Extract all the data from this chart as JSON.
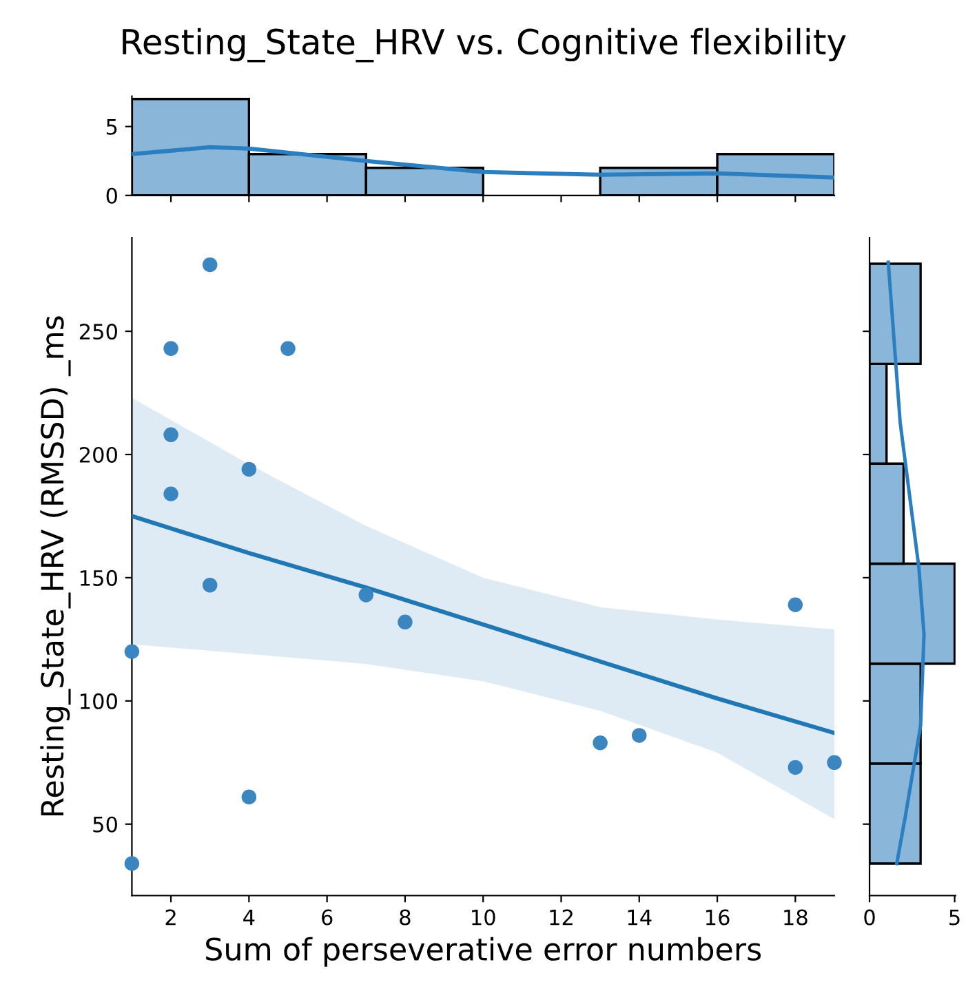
{
  "chart_data": [
    {
      "type": "histogram",
      "title": "Resting_State_HRV vs. Cognitive flexibility",
      "xlim": [
        1,
        19
      ],
      "xticks": [
        {
          "value": 2,
          "label": null
        },
        {
          "value": 4,
          "label": null
        },
        {
          "value": 6,
          "label": null
        },
        {
          "value": 8,
          "label": null
        },
        {
          "value": 10,
          "label": null
        },
        {
          "value": 12,
          "label": null
        },
        {
          "value": 14,
          "label": null
        },
        {
          "value": 16,
          "label": null
        },
        {
          "value": 18,
          "label": null
        }
      ],
      "ylim": [
        0,
        7.2
      ],
      "yticks": [
        0,
        5
      ],
      "tick_labels": "y",
      "grid": false,
      "series": [
        {
          "color": "#8ab6d9",
          "bins": [
            1,
            4,
            7,
            10,
            13,
            16,
            19
          ],
          "values": [
            7,
            3,
            2,
            0,
            2,
            3
          ]
        },
        {
          "type": "line",
          "color": "#2b7fc0",
          "x": [
            1,
            3,
            4,
            7,
            10,
            13,
            16,
            19
          ],
          "values": [
            3.0,
            3.5,
            3.4,
            2.5,
            1.7,
            1.5,
            1.6,
            1.3
          ]
        }
      ]
    },
    {
      "type": "scatter",
      "xlabel": "Sum of perseverative error numbers",
      "ylabel": "Resting_State_HRV (RMSSD) _ms",
      "xlim": [
        1,
        19
      ],
      "xticks": [
        2,
        4,
        6,
        8,
        10,
        12,
        14,
        16,
        18
      ],
      "ylim": [
        21,
        288
      ],
      "yticks": [
        50,
        100,
        150,
        200,
        250
      ],
      "grid": false,
      "series": [
        {
          "color": "#3b86c1",
          "marker": "circle",
          "x": [
            1,
            1,
            2,
            2,
            2,
            3,
            3,
            4,
            4,
            5,
            7,
            8,
            13,
            14,
            18,
            18,
            19
          ],
          "values": [
            34,
            120,
            243,
            208,
            184,
            277,
            147,
            194,
            61,
            243,
            143,
            132,
            83,
            86,
            139,
            73,
            75
          ]
        },
        {
          "type": "line",
          "color": "#1f77b4",
          "x": [
            1,
            4,
            7,
            10,
            13,
            16,
            19
          ],
          "values": [
            175,
            160,
            146,
            131,
            116,
            101,
            87
          ],
          "lower": [
            123,
            119,
            115,
            108,
            96,
            79,
            52
          ],
          "upper": [
            223,
            196,
            171,
            150,
            138,
            133,
            129
          ]
        }
      ]
    },
    {
      "type": "histogram",
      "orientation": "horizontal",
      "xlim": [
        0,
        5.05
      ],
      "xticks": [
        0,
        5
      ],
      "ylim": [
        21,
        288
      ],
      "yticks": [
        {
          "value": 50,
          "label": null
        },
        {
          "value": 100,
          "label": null
        },
        {
          "value": 150,
          "label": null
        },
        {
          "value": 200,
          "label": null
        },
        {
          "value": 250,
          "label": null
        }
      ],
      "tick_labels": "x",
      "grid": false,
      "series": [
        {
          "color": "#8ab6d9",
          "bins": [
            34,
            74.6,
            115.1,
            155.7,
            196.3,
            236.8,
            277.4
          ],
          "values": [
            3,
            3,
            5,
            2,
            1,
            3
          ]
        },
        {
          "type": "line",
          "color": "#2b7fc0",
          "x": [
            34,
            53,
            90,
            127,
            154,
            213,
            278
          ],
          "values": [
            1.6,
            2.1,
            3.0,
            3.2,
            2.9,
            1.8,
            1.1
          ]
        }
      ]
    }
  ]
}
